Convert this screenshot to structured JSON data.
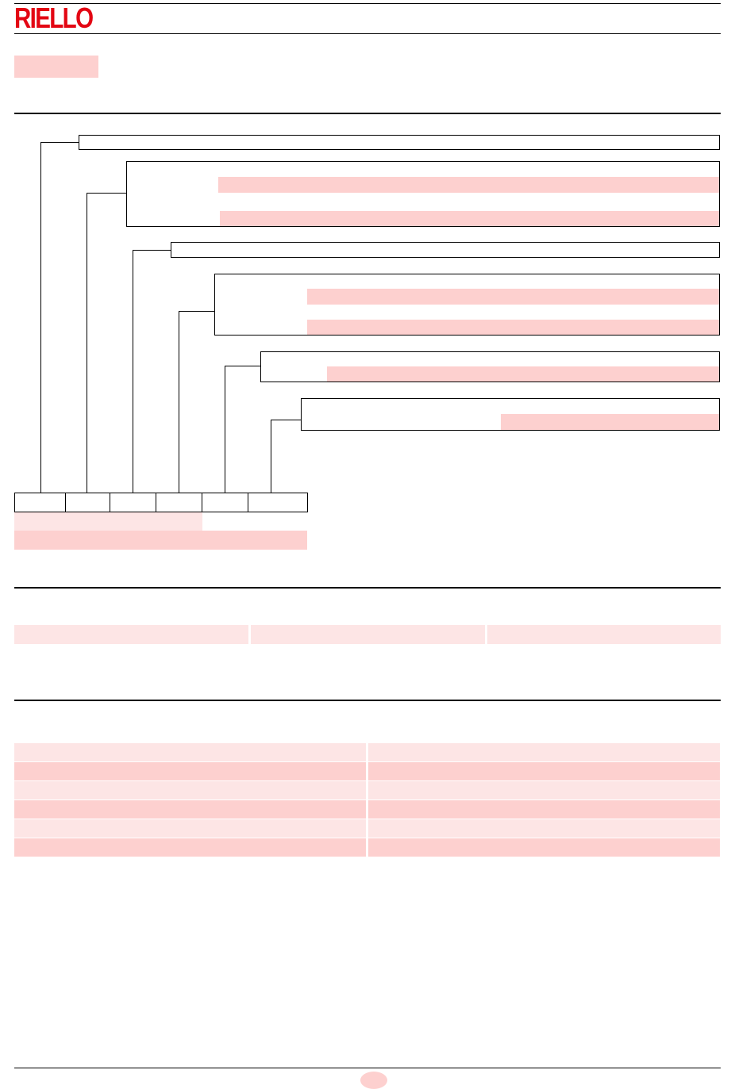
{
  "header": {
    "logo_text": "RIELLO",
    "logo_color": "#e30613"
  },
  "colors": {
    "shade_mid": "#fdd0cf",
    "shade_light": "#fde5e5",
    "rule": "#000000"
  }
}
